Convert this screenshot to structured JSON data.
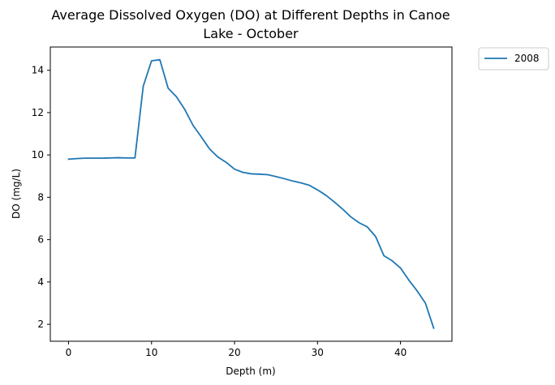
{
  "chart_data": {
    "type": "line",
    "title_lines": [
      "Average Dissolved Oxygen (DO) at Different Depths in Canoe",
      "Lake - October"
    ],
    "xlabel": "Depth (m)",
    "ylabel": "DO (mg/L)",
    "xlim": [
      -2.2,
      46.2
    ],
    "ylim": [
      1.2,
      15.1
    ],
    "xticks": [
      0,
      10,
      20,
      30,
      40
    ],
    "yticks": [
      2,
      4,
      6,
      8,
      10,
      12,
      14
    ],
    "grid": false,
    "legend_position": "outside-top-right",
    "series": [
      {
        "name": "2008",
        "color": "#1f77b4",
        "x": [
          0,
          1,
          2,
          3,
          4,
          5,
          6,
          7,
          8,
          9,
          10,
          11,
          12,
          13,
          14,
          15,
          16,
          17,
          18,
          19,
          20,
          21,
          22,
          23,
          24,
          25,
          26,
          27,
          28,
          29,
          30,
          31,
          32,
          33,
          34,
          35,
          36,
          37,
          38,
          39,
          40,
          41,
          42,
          43,
          44
        ],
        "y": [
          9.8,
          9.83,
          9.85,
          9.85,
          9.85,
          9.86,
          9.87,
          9.86,
          9.86,
          13.25,
          14.45,
          14.5,
          13.15,
          12.75,
          12.15,
          11.4,
          10.85,
          10.28,
          9.9,
          9.65,
          9.33,
          9.18,
          9.11,
          9.09,
          9.07,
          8.98,
          8.88,
          8.77,
          8.68,
          8.57,
          8.35,
          8.1,
          7.79,
          7.45,
          7.08,
          6.8,
          6.6,
          6.15,
          5.24,
          5.0,
          4.66,
          4.09,
          3.58,
          3.0,
          1.82
        ]
      }
    ]
  }
}
